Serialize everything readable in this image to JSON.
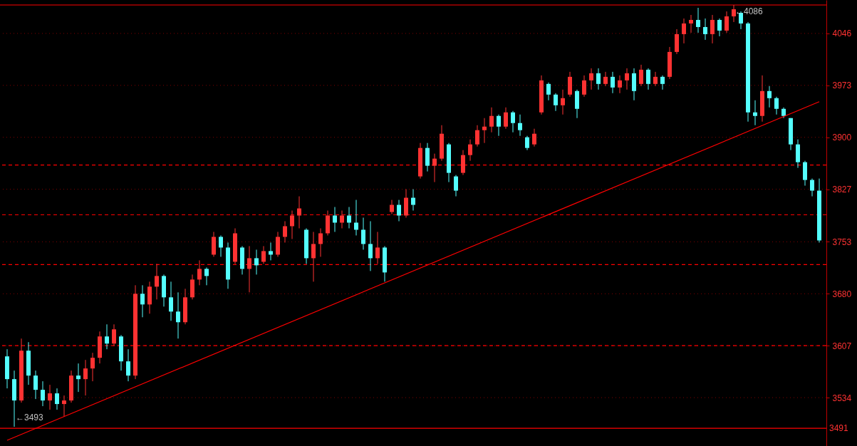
{
  "chart_data": {
    "type": "candlestick",
    "categories": [
      null,
      null,
      null,
      null,
      null,
      null,
      null,
      null,
      null,
      null,
      null,
      null,
      null,
      null,
      null,
      null,
      null,
      null,
      null,
      null,
      null,
      null,
      null,
      null,
      null,
      null,
      null,
      null,
      null,
      null,
      null,
      null,
      null,
      null,
      null,
      null,
      null,
      null,
      null,
      null,
      null,
      null,
      null,
      null,
      null,
      null,
      null,
      null,
      null,
      null,
      null,
      null,
      null,
      null,
      null,
      null,
      null,
      null,
      null,
      null,
      null,
      null,
      null,
      null,
      null,
      null,
      null,
      null,
      null,
      null,
      null,
      null,
      null,
      null,
      null,
      null,
      null,
      null,
      null,
      null,
      null,
      null,
      null,
      null,
      null,
      null,
      null,
      null,
      null,
      null,
      null,
      null,
      null,
      null,
      null,
      null,
      null,
      null,
      null,
      null,
      null,
      null,
      null,
      null,
      null,
      null,
      null,
      null,
      null,
      null,
      null,
      null,
      null,
      null,
      null
    ],
    "ohlc": [
      [
        3592,
        3602,
        3547,
        3560
      ],
      [
        3560,
        3572,
        3493,
        3530
      ],
      [
        3530,
        3617,
        3527,
        3600
      ],
      [
        3600,
        3612,
        3552,
        3565
      ],
      [
        3565,
        3572,
        3532,
        3545
      ],
      [
        3545,
        3557,
        3522,
        3530
      ],
      [
        3530,
        3552,
        3517,
        3540
      ],
      [
        3540,
        3547,
        3517,
        3525
      ],
      [
        3525,
        3537,
        3507,
        3530
      ],
      [
        3530,
        3572,
        3527,
        3565
      ],
      [
        3565,
        3582,
        3542,
        3560
      ],
      [
        3560,
        3587,
        3537,
        3575
      ],
      [
        3575,
        3597,
        3557,
        3590
      ],
      [
        3590,
        3627,
        3582,
        3620
      ],
      [
        3620,
        3637,
        3602,
        3610
      ],
      [
        3610,
        3637,
        3607,
        3630
      ],
      [
        3620,
        3622,
        3572,
        3585
      ],
      [
        3585,
        3602,
        3557,
        3565
      ],
      [
        3565,
        3692,
        3560,
        3680
      ],
      [
        3680,
        3692,
        3647,
        3665
      ],
      [
        3665,
        3697,
        3652,
        3690
      ],
      [
        3690,
        3722,
        3672,
        3705
      ],
      [
        3705,
        3707,
        3662,
        3675
      ],
      [
        3675,
        3697,
        3642,
        3655
      ],
      [
        3655,
        3682,
        3617,
        3640
      ],
      [
        3640,
        3687,
        3637,
        3675
      ],
      [
        3675,
        3707,
        3672,
        3700
      ],
      [
        3700,
        3727,
        3692,
        3715
      ],
      [
        3715,
        3717,
        3692,
        3705
      ],
      [
        3735,
        3767,
        3732,
        3760
      ],
      [
        3760,
        3762,
        3732,
        3745
      ],
      [
        3745,
        3752,
        3687,
        3700
      ],
      [
        3725,
        3772,
        3722,
        3765
      ],
      [
        3745,
        3747,
        3707,
        3715
      ],
      [
        3715,
        3747,
        3682,
        3730
      ],
      [
        3730,
        3742,
        3707,
        3720
      ],
      [
        3725,
        3747,
        3722,
        3740
      ],
      [
        3740,
        3752,
        3727,
        3735
      ],
      [
        3735,
        3767,
        3732,
        3760
      ],
      [
        3760,
        3782,
        3752,
        3775
      ],
      [
        3775,
        3797,
        3757,
        3790
      ],
      [
        3790,
        3817,
        3772,
        3800
      ],
      [
        3770,
        3772,
        3722,
        3730
      ],
      [
        3730,
        3767,
        3697,
        3750
      ],
      [
        3750,
        3772,
        3732,
        3765
      ],
      [
        3765,
        3797,
        3762,
        3790
      ],
      [
        3790,
        3802,
        3767,
        3780
      ],
      [
        3780,
        3797,
        3772,
        3790
      ],
      [
        3790,
        3802,
        3772,
        3780
      ],
      [
        3780,
        3812,
        3762,
        3770
      ],
      [
        3770,
        3787,
        3742,
        3750
      ],
      [
        3750,
        3782,
        3712,
        3730
      ],
      [
        3730,
        3767,
        3722,
        3745
      ],
      [
        3745,
        3747,
        3697,
        3710
      ],
      [
        3795,
        3812,
        3792,
        3805
      ],
      [
        3805,
        3812,
        3782,
        3790
      ],
      [
        3790,
        3827,
        3787,
        3815
      ],
      [
        3815,
        3827,
        3797,
        3805
      ],
      [
        3845,
        3892,
        3842,
        3885
      ],
      [
        3885,
        3892,
        3852,
        3860
      ],
      [
        3860,
        3877,
        3837,
        3870
      ],
      [
        3870,
        3917,
        3867,
        3905
      ],
      [
        3890,
        3892,
        3837,
        3850
      ],
      [
        3845,
        3847,
        3817,
        3825
      ],
      [
        3850,
        3882,
        3847,
        3875
      ],
      [
        3875,
        3897,
        3867,
        3890
      ],
      [
        3890,
        3917,
        3887,
        3910
      ],
      [
        3910,
        3927,
        3892,
        3915
      ],
      [
        3915,
        3942,
        3907,
        3930
      ],
      [
        3930,
        3932,
        3902,
        3915
      ],
      [
        3915,
        3942,
        3912,
        3935
      ],
      [
        3935,
        3937,
        3907,
        3920
      ],
      [
        3920,
        3932,
        3902,
        3910
      ],
      [
        3900,
        3902,
        3882,
        3885
      ],
      [
        3890,
        3912,
        3887,
        3905
      ],
      [
        3935,
        3987,
        3932,
        3980
      ],
      [
        3975,
        3977,
        3952,
        3960
      ],
      [
        3960,
        3962,
        3937,
        3945
      ],
      [
        3945,
        3967,
        3932,
        3955
      ],
      [
        3960,
        3992,
        3957,
        3985
      ],
      [
        3965,
        3967,
        3927,
        3940
      ],
      [
        3960,
        3987,
        3957,
        3980
      ],
      [
        3980,
        3997,
        3967,
        3990
      ],
      [
        3990,
        3997,
        3967,
        3975
      ],
      [
        3975,
        3992,
        3972,
        3985
      ],
      [
        3985,
        3992,
        3962,
        3970
      ],
      [
        3970,
        3987,
        3962,
        3980
      ],
      [
        3980,
        3997,
        3967,
        3990
      ],
      [
        3990,
        3997,
        3952,
        3965
      ],
      [
        3975,
        4002,
        3972,
        3995
      ],
      [
        3995,
        3997,
        3967,
        3975
      ],
      [
        3975,
        3992,
        3972,
        3985
      ],
      [
        3985,
        3987,
        3967,
        3975
      ],
      [
        3985,
        4027,
        3982,
        4020
      ],
      [
        4020,
        4052,
        4017,
        4045
      ],
      [
        4045,
        4067,
        4032,
        4060
      ],
      [
        4060,
        4072,
        4047,
        4065
      ],
      [
        4065,
        4082,
        4047,
        4055
      ],
      [
        4055,
        4067,
        4037,
        4045
      ],
      [
        4045,
        4072,
        4032,
        4065
      ],
      [
        4065,
        4067,
        4042,
        4050
      ],
      [
        4050,
        4077,
        4047,
        4070
      ],
      [
        4070,
        4086,
        4062,
        4080
      ],
      [
        4075,
        4077,
        4052,
        4060
      ],
      [
        4060,
        4062,
        3922,
        3935
      ],
      [
        3935,
        3952,
        3917,
        3930
      ],
      [
        3930,
        3987,
        3922,
        3965
      ],
      [
        3965,
        3972,
        3942,
        3955
      ],
      [
        3955,
        3957,
        3932,
        3940
      ],
      [
        3940,
        3942,
        3927,
        3930
      ],
      [
        3927,
        3927,
        3882,
        3890
      ],
      [
        3890,
        3897,
        3857,
        3865
      ],
      [
        3865,
        3867,
        3832,
        3840
      ],
      [
        3840,
        3842,
        3817,
        3825
      ],
      [
        3825,
        3842,
        3752,
        3755
      ]
    ],
    "colors": [
      "#54ffff",
      "#54ffff",
      "#ff3232",
      "#54ffff",
      "#54ffff",
      "#54ffff",
      "#ff3232",
      "#54ffff",
      "#ff3232",
      "#ff3232",
      "#54ffff",
      "#ff3232",
      "#ff3232",
      "#ff3232",
      "#54ffff",
      "#ff3232",
      "#54ffff",
      "#54ffff",
      "#ff3232",
      "#54ffff",
      "#ff3232",
      "#ff3232",
      "#54ffff",
      "#54ffff",
      "#54ffff",
      "#ff3232",
      "#ff3232",
      "#ff3232",
      "#54ffff",
      "#ff3232",
      "#54ffff",
      "#54ffff",
      "#ff3232",
      "#54ffff",
      "#ff3232",
      "#54ffff",
      "#ff3232",
      "#54ffff",
      "#ff3232",
      "#ff3232",
      "#ff3232",
      "#ff3232",
      "#54ffff",
      "#ff3232",
      "#ff3232",
      "#ff3232",
      "#54ffff",
      "#ff3232",
      "#54ffff",
      "#54ffff",
      "#54ffff",
      "#54ffff",
      "#ff3232",
      "#54ffff",
      "#ff3232",
      "#54ffff",
      "#ff3232",
      "#54ffff",
      "#ff3232",
      "#54ffff",
      "#ff3232",
      "#ff3232",
      "#54ffff",
      "#54ffff",
      "#ff3232",
      "#ff3232",
      "#ff3232",
      "#ff3232",
      "#ff3232",
      "#54ffff",
      "#ff3232",
      "#54ffff",
      "#54ffff",
      "#54ffff",
      "#ff3232",
      "#ff3232",
      "#54ffff",
      "#54ffff",
      "#ff3232",
      "#ff3232",
      "#54ffff",
      "#ff3232",
      "#ff3232",
      "#54ffff",
      "#ff3232",
      "#54ffff",
      "#ff3232",
      "#ff3232",
      "#54ffff",
      "#ff3232",
      "#54ffff",
      "#ff3232",
      "#54ffff",
      "#ff3232",
      "#ff3232",
      "#ff3232",
      "#ff3232",
      "#54ffff",
      "#54ffff",
      "#ff3232",
      "#54ffff",
      "#ff3232",
      "#ff3232",
      "#54ffff",
      "#54ffff",
      "#54ffff",
      "#ff3232",
      "#54ffff",
      "#54ffff",
      "#54ffff",
      "#54ffff",
      "#54ffff",
      "#54ffff",
      "#54ffff",
      "#54ffff"
    ],
    "series": [
      {
        "type": "line",
        "color": "#ff0000",
        "values": [
          3474,
          null,
          null,
          null,
          null,
          null,
          null,
          null,
          null,
          null,
          null,
          null,
          null,
          null,
          null,
          null,
          null,
          null,
          null,
          null,
          null,
          null,
          null,
          null,
          null,
          null,
          null,
          null,
          null,
          null,
          null,
          null,
          null,
          null,
          null,
          null,
          null,
          null,
          null,
          null,
          null,
          null,
          null,
          null,
          null,
          null,
          null,
          null,
          null,
          null,
          null,
          null,
          null,
          null,
          null,
          null,
          null,
          null,
          null,
          null,
          null,
          null,
          null,
          null,
          null,
          null,
          null,
          null,
          null,
          null,
          null,
          null,
          null,
          null,
          null,
          null,
          null,
          null,
          null,
          null,
          null,
          null,
          null,
          null,
          null,
          null,
          null,
          null,
          null,
          null,
          null,
          null,
          null,
          null,
          null,
          null,
          null,
          null,
          null,
          null,
          null,
          null,
          null,
          null,
          null,
          null,
          null,
          null,
          null,
          null,
          null,
          null,
          null,
          null,
          3950
        ]
      }
    ],
    "ylim": [
      3466,
      4093
    ],
    "yticks": [
      3534,
      3607,
      3680,
      3753,
      3827,
      3900,
      3973,
      4046
    ],
    "grid": "y",
    "tick_labels": "y",
    "ref_lines": [
      {
        "axis": "y",
        "value": 4086,
        "color": "#ff0000",
        "line_style": "solid"
      },
      {
        "axis": "y",
        "value": 3491,
        "label": "3491",
        "color": "#ff0000",
        "line_style": "solid"
      },
      {
        "axis": "y",
        "value": 3861,
        "color": "#ff0000",
        "line_style": "dashed"
      },
      {
        "axis": "y",
        "value": 3791,
        "color": "#ff0000",
        "line_style": "dashed"
      },
      {
        "axis": "y",
        "value": 3721,
        "color": "#ff0000",
        "line_style": "dashed"
      },
      {
        "axis": "y",
        "value": 3607,
        "color": "#ff0000",
        "line_style": "dashed"
      }
    ],
    "annotations": [
      {
        "text": "←4086",
        "y": 4086
      },
      {
        "text": "←3493",
        "y": 3493
      }
    ]
  }
}
